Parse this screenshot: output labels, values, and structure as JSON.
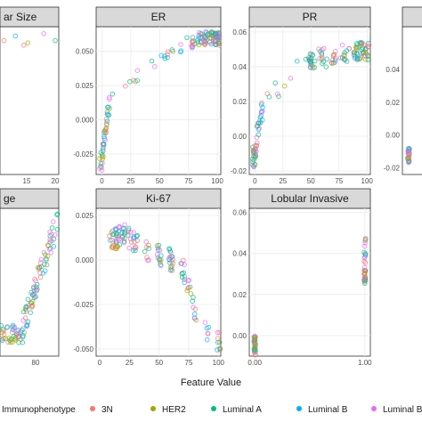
{
  "palette": {
    "3N": "#F8766D",
    "HER2": "#A3A500",
    "Luminal A": "#00BF7D",
    "Luminal B": "#00B0F6",
    "Luminal B H": "#E76BF3"
  },
  "xlabel": "Feature Value",
  "legend": {
    "title": "Immunophenotype",
    "items": [
      "3N",
      "HER2",
      "Luminal A",
      "Luminal B",
      "Luminal B H"
    ]
  },
  "chart_data": [
    {
      "type": "scatter",
      "title": "Tumour Size (partially visible)",
      "strip_label": "ar Size",
      "x_ticks": [
        15,
        20
      ],
      "y_ticks": [],
      "points": [
        [
          14.5,
          0.05
        ],
        [
          15.2,
          0.051
        ],
        [
          20,
          0.052
        ],
        [
          13,
          0.054
        ],
        [
          18,
          0.055
        ],
        [
          11,
          0.052
        ]
      ]
    },
    {
      "type": "scatter",
      "title": "ER",
      "strip_label": "ER",
      "xlim": [
        -5,
        103
      ],
      "ylim": [
        -0.04,
        0.068
      ],
      "x_ticks": [
        0,
        25,
        50,
        75,
        100
      ],
      "y_ticks": [
        -0.025,
        0.0,
        0.025,
        0.05
      ],
      "y_tick_labels": [
        "-0.025",
        "0.000",
        "0.025",
        "0.050"
      ],
      "trend": [
        [
          0,
          -0.03
        ],
        [
          2,
          -0.012
        ],
        [
          5,
          0.005
        ],
        [
          10,
          0.02
        ],
        [
          20,
          0.025
        ],
        [
          30,
          0.033
        ],
        [
          40,
          0.04
        ],
        [
          50,
          0.045
        ],
        [
          60,
          0.05
        ],
        [
          70,
          0.055
        ],
        [
          80,
          0.058
        ],
        [
          90,
          0.06
        ],
        [
          100,
          0.059
        ]
      ]
    },
    {
      "type": "scatter",
      "title": "PR",
      "strip_label": "PR",
      "xlim": [
        -5,
        103
      ],
      "ylim": [
        -0.022,
        0.063
      ],
      "x_ticks": [
        0,
        25,
        50,
        75,
        100
      ],
      "y_ticks": [
        -0.02,
        0.0,
        0.02,
        0.04,
        0.06
      ],
      "y_tick_labels": [
        "-0.02",
        "0.00",
        "0.02",
        "0.04",
        "0.06"
      ],
      "trend": [
        [
          0,
          -0.012
        ],
        [
          2,
          0.002
        ],
        [
          5,
          0.012
        ],
        [
          10,
          0.02
        ],
        [
          20,
          0.027
        ],
        [
          30,
          0.033
        ],
        [
          40,
          0.04
        ],
        [
          50,
          0.043
        ],
        [
          60,
          0.045
        ],
        [
          70,
          0.047
        ],
        [
          80,
          0.048
        ],
        [
          90,
          0.049
        ],
        [
          100,
          0.049
        ]
      ]
    },
    {
      "type": "scatter",
      "title": "(partially visible)",
      "strip_label": "",
      "x_ticks": [],
      "y_ticks": [
        -0.02,
        0.0,
        0.02,
        0.04
      ],
      "y_tick_labels": [
        "-0.02",
        "0.00",
        "0.02",
        "0.04"
      ]
    },
    {
      "type": "scatter",
      "title": "Age (partially visible)",
      "strip_label": "ge",
      "x_ticks": [
        80
      ],
      "y_ticks": []
    },
    {
      "type": "scatter",
      "title": "Ki-67",
      "strip_label": "Ki-67",
      "xlim": [
        -3,
        102
      ],
      "ylim": [
        -0.054,
        0.029
      ],
      "x_ticks": [
        0,
        25,
        50,
        75,
        100
      ],
      "y_ticks": [
        -0.05,
        -0.025,
        0.0,
        0.025
      ],
      "y_tick_labels": [
        "-0.050",
        "-0.025",
        "0.000",
        "0.025"
      ],
      "trend": [
        [
          0,
          0.005
        ],
        [
          10,
          0.01
        ],
        [
          20,
          0.015
        ],
        [
          30,
          0.01
        ],
        [
          40,
          0.005
        ],
        [
          50,
          0.003
        ],
        [
          60,
          0.0
        ],
        [
          70,
          -0.004
        ],
        [
          75,
          -0.015
        ],
        [
          80,
          -0.03
        ],
        [
          90,
          -0.04
        ],
        [
          100,
          -0.045
        ]
      ]
    },
    {
      "type": "scatter",
      "title": "Lobular Invasive",
      "strip_label": "Lobular Invasive",
      "xlim": [
        -0.05,
        1.05
      ],
      "ylim": [
        -0.01,
        0.062
      ],
      "x_ticks": [
        0,
        1
      ],
      "x_tick_labels": [
        "0.00",
        "1.00"
      ],
      "y_ticks": [
        0.0,
        0.02,
        0.04,
        0.06
      ],
      "y_tick_labels": [
        "0.00",
        "0.02",
        "0.04",
        "0.06"
      ],
      "clusters": [
        [
          0,
          -0.01,
          0.0
        ],
        [
          1,
          0.025,
          0.048
        ]
      ]
    }
  ]
}
